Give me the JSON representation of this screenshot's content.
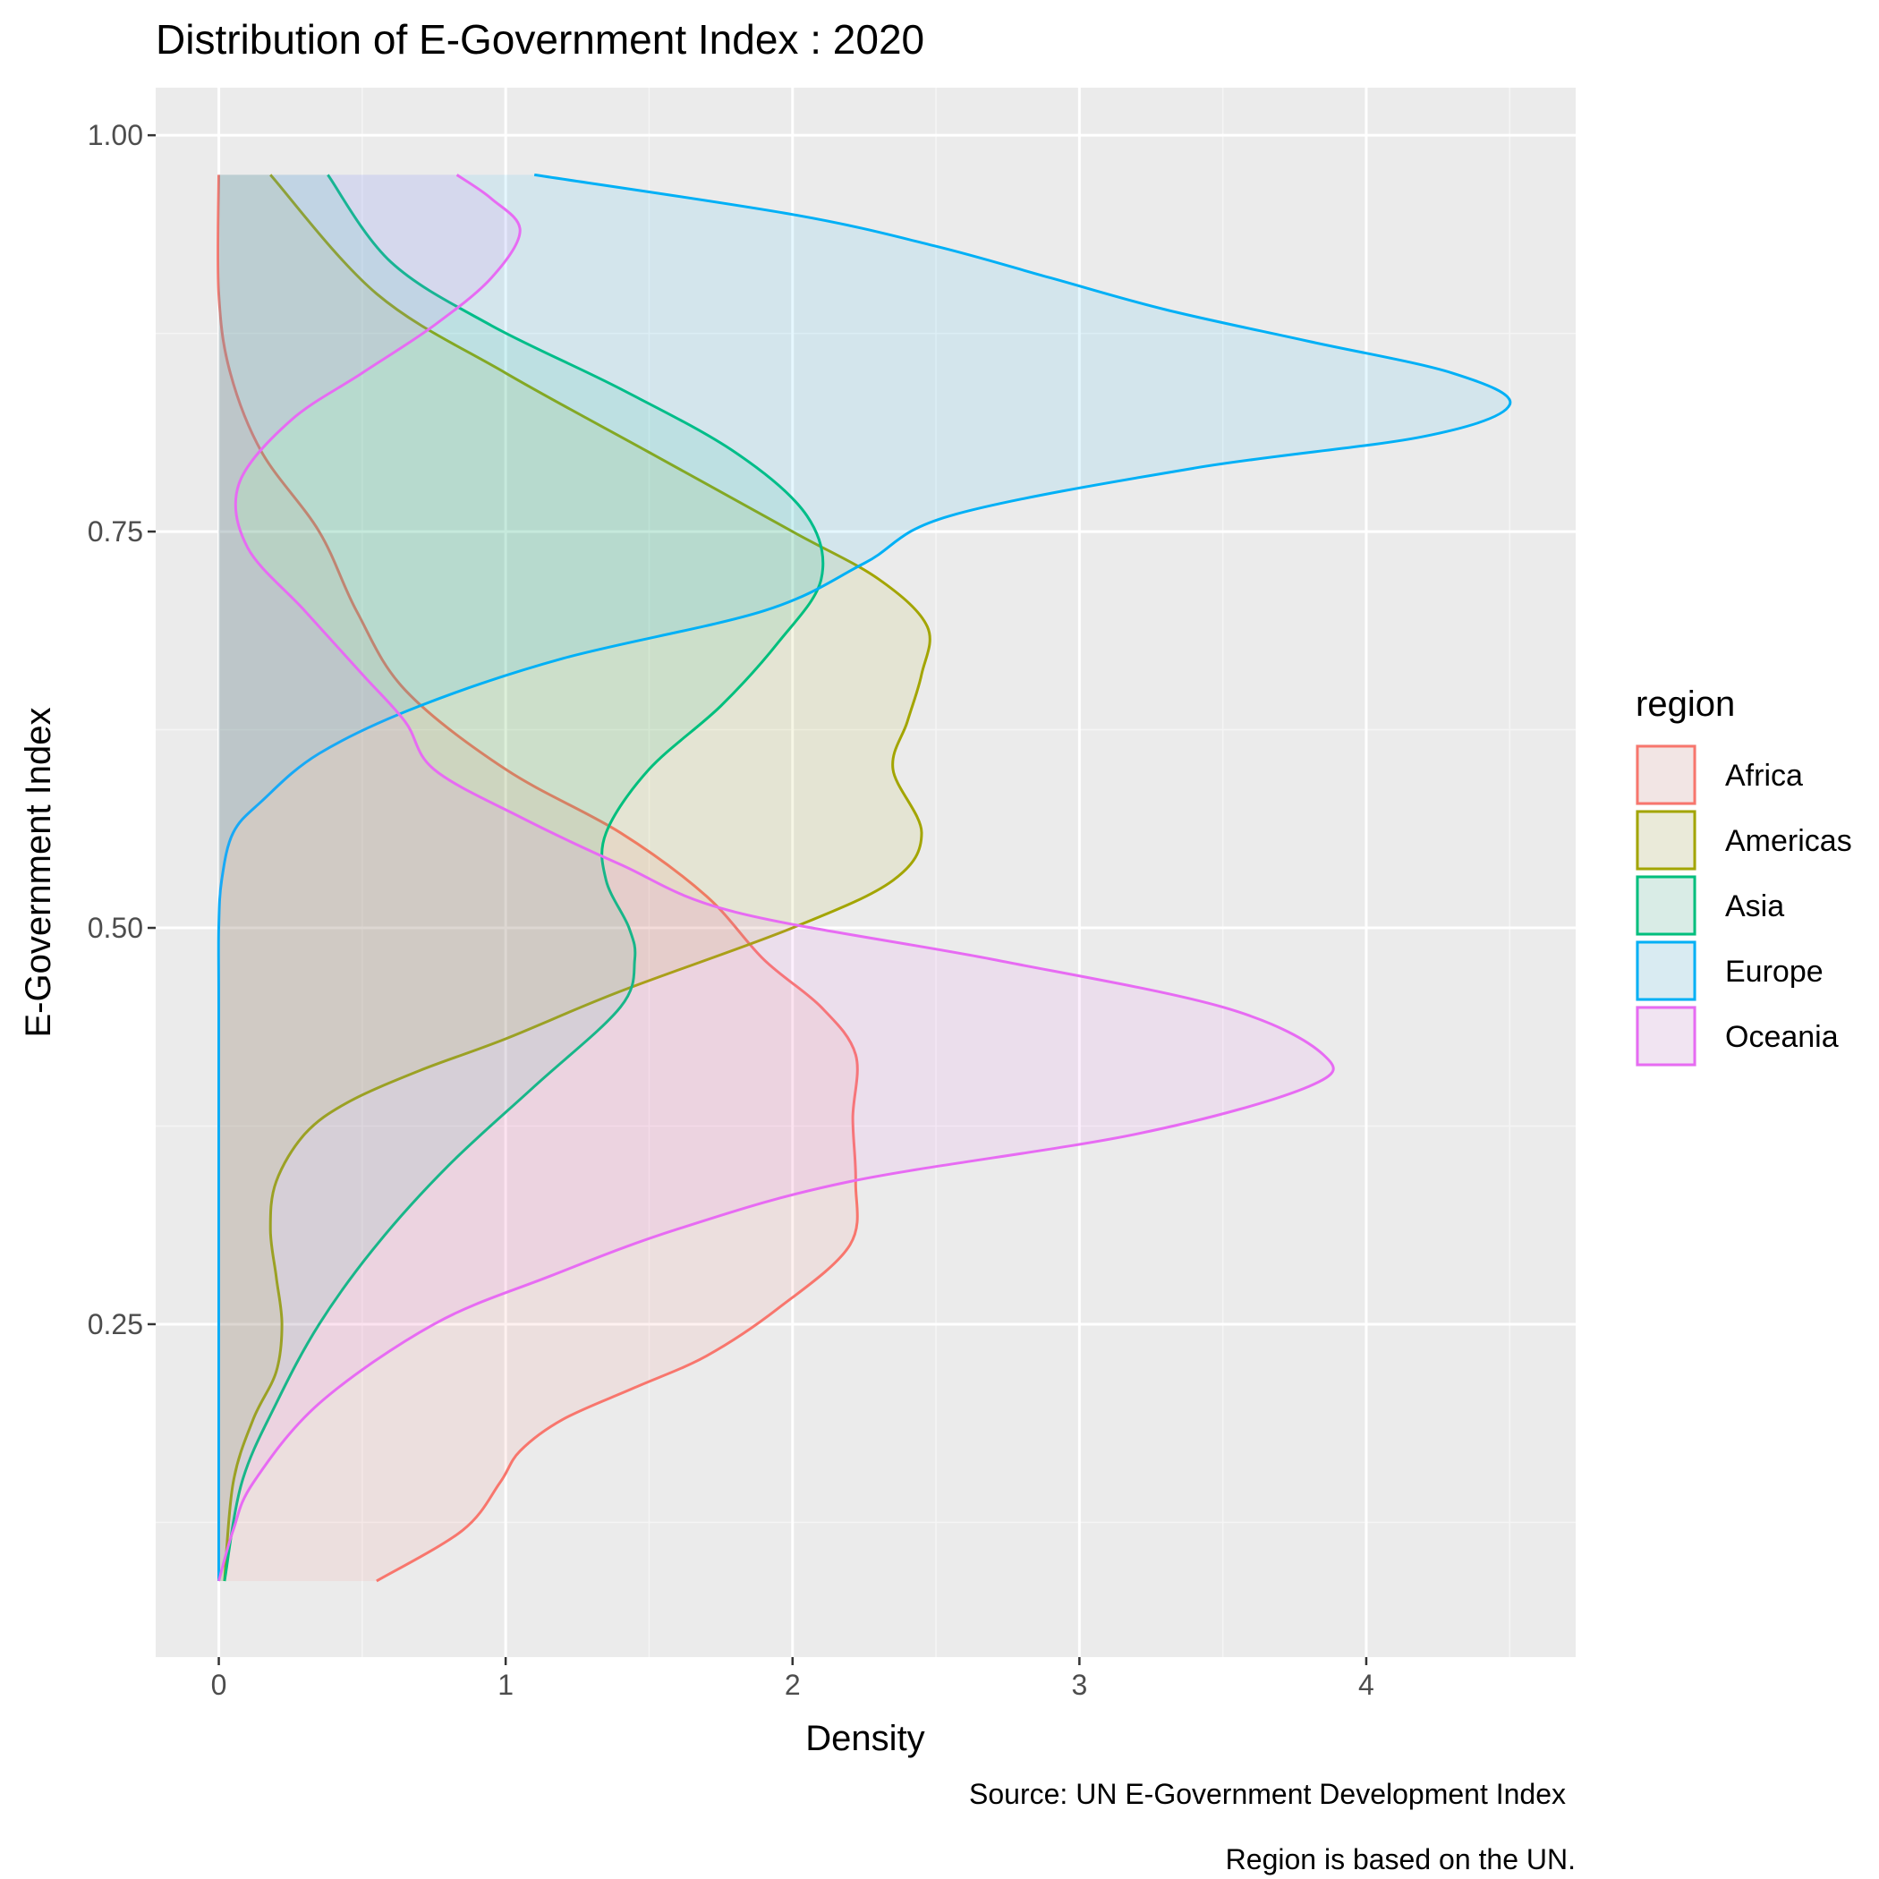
{
  "chart_data": {
    "type": "area",
    "orientation": "horizontal-density",
    "title": "Distribution of E-Government Index : 2020",
    "xlabel": "Density",
    "ylabel": "E-Government Index",
    "xlim": [
      -0.22,
      4.73
    ],
    "ylim": [
      0.04,
      1.03
    ],
    "x_ticks": [
      0,
      1,
      2,
      3,
      4
    ],
    "x_tick_labels": [
      "0",
      "1",
      "2",
      "3",
      "4"
    ],
    "y_ticks": [
      0.25,
      0.5,
      0.75,
      1.0
    ],
    "y_tick_labels": [
      "0.25",
      "0.50",
      "0.75",
      "1.00"
    ],
    "grid": true,
    "legend": {
      "title": "region",
      "placement": "right"
    },
    "captions": [
      "Source: UN E-Government Development Index",
      "Region is based on the UN."
    ],
    "series": [
      {
        "name": "Africa",
        "color": "#F8766D",
        "y": [
          0.088,
          0.12,
          0.15,
          0.17,
          0.19,
          0.21,
          0.23,
          0.26,
          0.3,
          0.34,
          0.38,
          0.42,
          0.45,
          0.48,
          0.52,
          0.56,
          0.6,
          0.65,
          0.7,
          0.75,
          0.8,
          0.85,
          0.9,
          0.975
        ],
        "density": [
          0.55,
          0.85,
          0.98,
          1.05,
          1.2,
          1.45,
          1.7,
          1.95,
          2.2,
          2.22,
          2.21,
          2.22,
          2.1,
          1.9,
          1.7,
          1.4,
          1.0,
          0.65,
          0.48,
          0.35,
          0.15,
          0.04,
          0.0,
          0.0
        ]
      },
      {
        "name": "Americas",
        "color": "#A3A500",
        "y": [
          0.088,
          0.15,
          0.19,
          0.22,
          0.25,
          0.28,
          0.31,
          0.34,
          0.37,
          0.39,
          0.41,
          0.43,
          0.46,
          0.5,
          0.53,
          0.56,
          0.6,
          0.63,
          0.66,
          0.69,
          0.72,
          0.75,
          0.8,
          0.85,
          0.9,
          0.975
        ],
        "density": [
          0.02,
          0.05,
          0.12,
          0.2,
          0.22,
          0.2,
          0.18,
          0.2,
          0.3,
          0.45,
          0.7,
          1.0,
          1.4,
          2.0,
          2.35,
          2.45,
          2.35,
          2.4,
          2.45,
          2.47,
          2.3,
          2.0,
          1.5,
          1.0,
          0.55,
          0.18
        ]
      },
      {
        "name": "Asia",
        "color": "#00BF7D",
        "y": [
          0.088,
          0.15,
          0.2,
          0.25,
          0.3,
          0.35,
          0.4,
          0.45,
          0.48,
          0.5,
          0.53,
          0.56,
          0.6,
          0.64,
          0.68,
          0.72,
          0.76,
          0.8,
          0.84,
          0.88,
          0.92,
          0.975
        ],
        "density": [
          0.02,
          0.08,
          0.2,
          0.35,
          0.55,
          0.8,
          1.1,
          1.4,
          1.45,
          1.43,
          1.35,
          1.35,
          1.5,
          1.75,
          1.95,
          2.1,
          2.05,
          1.8,
          1.4,
          0.95,
          0.6,
          0.38
        ]
      },
      {
        "name": "Europe",
        "color": "#00B0F6",
        "y": [
          0.088,
          0.3,
          0.45,
          0.5,
          0.53,
          0.56,
          0.58,
          0.61,
          0.64,
          0.67,
          0.7,
          0.73,
          0.76,
          0.79,
          0.81,
          0.83,
          0.85,
          0.87,
          0.89,
          0.91,
          0.93,
          0.95,
          0.975
        ],
        "density": [
          0.0,
          0.0,
          0.0,
          0.0,
          0.01,
          0.05,
          0.15,
          0.35,
          0.7,
          1.2,
          1.9,
          2.25,
          2.55,
          3.4,
          4.2,
          4.5,
          4.3,
          3.8,
          3.3,
          2.9,
          2.5,
          2.0,
          1.1
        ]
      },
      {
        "name": "Oceania",
        "color": "#E76BF3",
        "y": [
          0.088,
          0.12,
          0.15,
          0.2,
          0.25,
          0.28,
          0.31,
          0.34,
          0.37,
          0.4,
          0.42,
          0.45,
          0.48,
          0.51,
          0.54,
          0.57,
          0.6,
          0.63,
          0.66,
          0.7,
          0.74,
          0.78,
          0.82,
          0.85,
          0.88,
          0.91,
          0.94,
          0.96,
          0.975
        ],
        "density": [
          0.0,
          0.05,
          0.12,
          0.35,
          0.75,
          1.15,
          1.6,
          2.2,
          3.2,
          3.8,
          3.85,
          3.5,
          2.7,
          1.8,
          1.4,
          1.05,
          0.75,
          0.65,
          0.5,
          0.3,
          0.1,
          0.07,
          0.25,
          0.5,
          0.75,
          0.95,
          1.05,
          0.95,
          0.83
        ]
      }
    ]
  }
}
